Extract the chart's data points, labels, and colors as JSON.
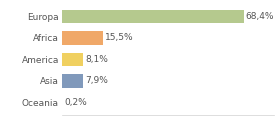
{
  "categories": [
    "Europa",
    "Africa",
    "America",
    "Asia",
    "Oceania"
  ],
  "values": [
    68.4,
    15.5,
    8.1,
    7.9,
    0.2
  ],
  "labels": [
    "68,4%",
    "15,5%",
    "8,1%",
    "7,9%",
    "0,2%"
  ],
  "colors": [
    "#b5c98e",
    "#f0a868",
    "#f0d060",
    "#8099bb",
    "#e0e0e0"
  ],
  "background_color": "#ffffff",
  "xlim": [
    0,
    80
  ],
  "bar_height": 0.62,
  "label_fontsize": 6.5,
  "tick_fontsize": 6.5,
  "grid_color": "#d0d0d0"
}
